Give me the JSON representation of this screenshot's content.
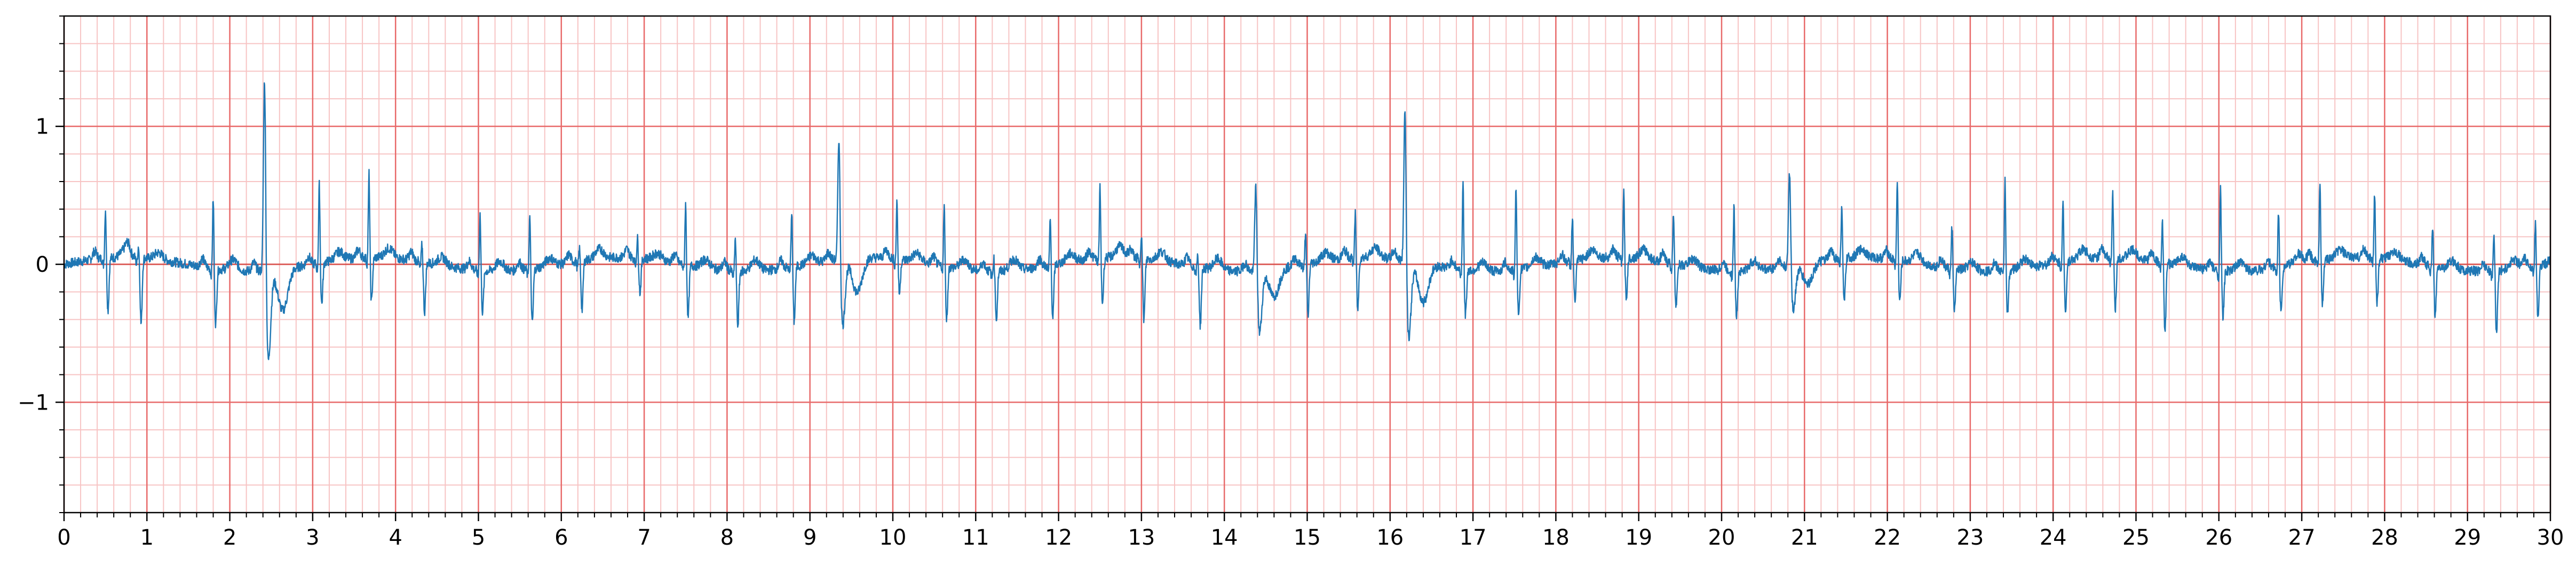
{
  "chart_data": {
    "type": "line",
    "title": "",
    "xlabel": "",
    "ylabel": "",
    "xlim": [
      0,
      30
    ],
    "ylim": [
      -1.8,
      1.8
    ],
    "x_major_ticks": [
      0,
      1,
      2,
      3,
      4,
      5,
      6,
      7,
      8,
      9,
      10,
      11,
      12,
      13,
      14,
      15,
      16,
      17,
      18,
      19,
      20,
      21,
      22,
      23,
      24,
      25,
      26,
      27,
      28,
      29,
      30
    ],
    "x_tick_labels": [
      "0",
      "1",
      "2",
      "3",
      "4",
      "5",
      "6",
      "7",
      "8",
      "9",
      "10",
      "11",
      "12",
      "13",
      "14",
      "15",
      "16",
      "17",
      "18",
      "19",
      "20",
      "21",
      "22",
      "23",
      "24",
      "25",
      "26",
      "27",
      "28",
      "29",
      "30"
    ],
    "y_major_ticks": [
      -1,
      0,
      1
    ],
    "y_tick_labels": [
      "−1",
      "0",
      "1"
    ],
    "x_minor_step": 0.2,
    "y_minor_step": 0.2,
    "grid": {
      "major": true,
      "minor": true,
      "major_color": "#e86a6a",
      "minor_color": "#f7c4c4"
    },
    "zero_line": true,
    "series": [
      {
        "color": "#1f77b4",
        "beats": [
          {
            "t": 0.5,
            "r": 0.37,
            "s": -0.38,
            "t_wave": 0.06
          },
          {
            "t": 0.9,
            "r": 0.1,
            "s": -0.48,
            "t_wave": 0.05
          },
          {
            "t": 1.8,
            "r": 0.52,
            "s": -0.4,
            "t_wave": 0.08
          },
          {
            "t": 2.42,
            "r": 1.55,
            "s": -0.65,
            "t_wave": -0.3
          },
          {
            "t": 3.08,
            "r": 0.58,
            "s": -0.3,
            "t_wave": 0.06
          },
          {
            "t": 3.68,
            "r": 0.62,
            "s": -0.32,
            "t_wave": 0.07
          },
          {
            "t": 4.32,
            "r": 0.14,
            "s": -0.36,
            "t_wave": 0.06
          },
          {
            "t": 5.02,
            "r": 0.42,
            "s": -0.3,
            "t_wave": 0.07
          },
          {
            "t": 5.62,
            "r": 0.4,
            "s": -0.4,
            "t_wave": 0.06
          },
          {
            "t": 6.22,
            "r": 0.1,
            "s": -0.36,
            "t_wave": 0.07
          },
          {
            "t": 6.92,
            "r": 0.15,
            "s": -0.25,
            "t_wave": 0.05
          },
          {
            "t": 7.5,
            "r": 0.45,
            "s": -0.38,
            "t_wave": 0.06
          },
          {
            "t": 8.1,
            "r": 0.25,
            "s": -0.4,
            "t_wave": 0.08
          },
          {
            "t": 8.78,
            "r": 0.42,
            "s": -0.4,
            "t_wave": 0.06
          },
          {
            "t": 9.35,
            "r": 1.0,
            "s": -0.48,
            "t_wave": -0.25
          },
          {
            "t": 10.05,
            "r": 0.43,
            "s": -0.25,
            "t_wave": 0.06
          },
          {
            "t": 10.62,
            "r": 0.46,
            "s": -0.38,
            "t_wave": 0.07
          },
          {
            "t": 11.22,
            "r": 0.1,
            "s": -0.35,
            "t_wave": 0.08
          },
          {
            "t": 11.9,
            "r": 0.35,
            "s": -0.38,
            "t_wave": 0.06
          },
          {
            "t": 12.5,
            "r": 0.52,
            "s": -0.33,
            "t_wave": 0.08
          },
          {
            "t": 13.0,
            "r": 0.2,
            "s": -0.44,
            "t_wave": 0.07
          },
          {
            "t": 13.68,
            "r": 0.1,
            "s": -0.42,
            "t_wave": 0.08
          },
          {
            "t": 14.38,
            "r": 0.72,
            "s": -0.45,
            "t_wave": -0.2
          },
          {
            "t": 14.98,
            "r": 0.25,
            "s": -0.38,
            "t_wave": 0.06
          },
          {
            "t": 15.58,
            "r": 0.33,
            "s": -0.38,
            "t_wave": 0.07
          },
          {
            "t": 16.18,
            "r": 1.23,
            "s": -0.55,
            "t_wave": -0.28
          },
          {
            "t": 16.88,
            "r": 0.65,
            "s": -0.33,
            "t_wave": 0.06
          },
          {
            "t": 17.52,
            "r": 0.62,
            "s": -0.33,
            "t_wave": 0.07
          },
          {
            "t": 18.2,
            "r": 0.33,
            "s": -0.3,
            "t_wave": 0.06
          },
          {
            "t": 18.82,
            "r": 0.48,
            "s": -0.3,
            "t_wave": 0.07
          },
          {
            "t": 19.42,
            "r": 0.38,
            "s": -0.3,
            "t_wave": 0.06
          },
          {
            "t": 20.15,
            "r": 0.48,
            "s": -0.33,
            "t_wave": 0.07
          },
          {
            "t": 20.82,
            "r": 0.76,
            "s": -0.32,
            "t_wave": -0.15
          },
          {
            "t": 21.45,
            "r": 0.4,
            "s": -0.33,
            "t_wave": 0.06
          },
          {
            "t": 22.12,
            "r": 0.58,
            "s": -0.3,
            "t_wave": 0.07
          },
          {
            "t": 22.78,
            "r": 0.32,
            "s": -0.3,
            "t_wave": 0.06
          },
          {
            "t": 23.42,
            "r": 0.68,
            "s": -0.33,
            "t_wave": 0.07
          },
          {
            "t": 24.12,
            "r": 0.43,
            "s": -0.35,
            "t_wave": 0.07
          },
          {
            "t": 24.72,
            "r": 0.48,
            "s": -0.38,
            "t_wave": 0.06
          },
          {
            "t": 25.32,
            "r": 0.3,
            "s": -0.5,
            "t_wave": 0.07
          },
          {
            "t": 26.02,
            "r": 0.6,
            "s": -0.33,
            "t_wave": 0.06
          },
          {
            "t": 26.72,
            "r": 0.42,
            "s": -0.33,
            "t_wave": 0.07
          },
          {
            "t": 27.22,
            "r": 0.6,
            "s": -0.33,
            "t_wave": 0.06
          },
          {
            "t": 27.88,
            "r": 0.48,
            "s": -0.33,
            "t_wave": 0.07
          },
          {
            "t": 28.58,
            "r": 0.3,
            "s": -0.36,
            "t_wave": 0.06
          },
          {
            "t": 29.32,
            "r": 0.3,
            "s": -0.45,
            "t_wave": 0.07
          },
          {
            "t": 29.82,
            "r": 0.33,
            "s": -0.4,
            "t_wave": 0.06
          }
        ]
      }
    ]
  }
}
